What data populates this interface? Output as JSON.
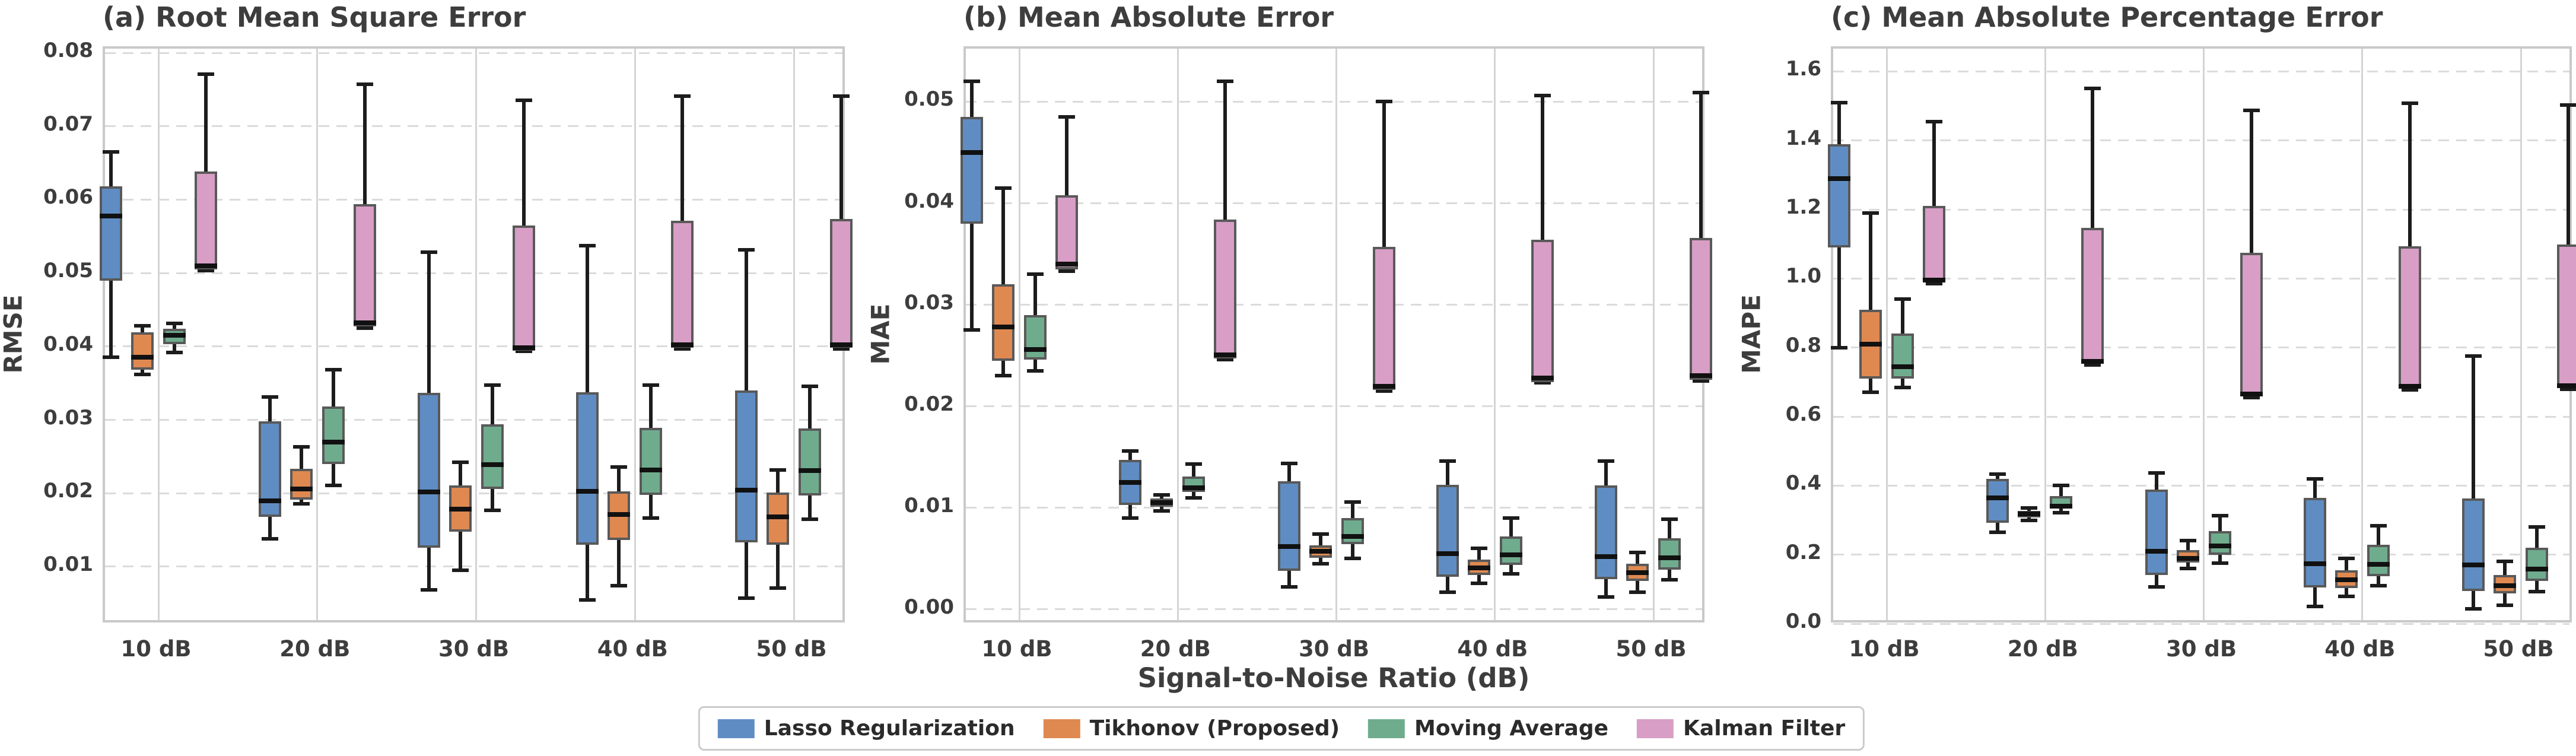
{
  "figure": {
    "xlabel": "Signal-to-Noise Ratio (dB)",
    "background": "#ffffff",
    "text_color": "#3d3d3d"
  },
  "legend": {
    "items": [
      {
        "key": "lasso",
        "label": "Lasso Regularization",
        "color": "#5f8dc3"
      },
      {
        "key": "tikhonov",
        "label": "Tikhonov (Proposed)",
        "color": "#df8951"
      },
      {
        "key": "moving",
        "label": "Moving Average",
        "color": "#6fac8e"
      },
      {
        "key": "kalman",
        "label": "Kalman Filter",
        "color": "#d89ec6"
      }
    ]
  },
  "style": {
    "box_edge_color": "#595959",
    "whisker_color": "#1c1c1c",
    "median_color": "#111111",
    "grid_color": "#dbdbdb",
    "vgrid_color": "#d4d4d4",
    "spine_color": "#c9c9c9"
  },
  "chart_data": [
    {
      "id": "a",
      "type": "box",
      "title": "(a) Root Mean Square Error",
      "ylabel": "RMSE",
      "categories": [
        "10 dB",
        "20 dB",
        "30 dB",
        "40 dB",
        "50 dB"
      ],
      "ylim": [
        0.00207,
        0.08057
      ],
      "yticks": [
        0.01,
        0.02,
        0.03,
        0.04,
        0.05,
        0.06,
        0.07,
        0.08
      ],
      "ytick_labels": [
        "0.01",
        "0.02",
        "0.03",
        "0.04",
        "0.05",
        "0.06",
        "0.07",
        "0.08"
      ],
      "grid": true,
      "legend_position": "figure-bottom",
      "series": [
        {
          "name": "Lasso Regularization",
          "key": "lasso",
          "boxes": [
            {
              "whislo": 0.0385,
              "q1": 0.049,
              "med": 0.0578,
              "q3": 0.0618,
              "whishi": 0.0665
            },
            {
              "whislo": 0.0138,
              "q1": 0.0168,
              "med": 0.019,
              "q3": 0.0298,
              "whishi": 0.0331
            },
            {
              "whislo": 0.0068,
              "q1": 0.0126,
              "med": 0.0202,
              "q3": 0.0337,
              "whishi": 0.0528
            },
            {
              "whislo": 0.0055,
              "q1": 0.013,
              "med": 0.0203,
              "q3": 0.0338,
              "whishi": 0.0537
            },
            {
              "whislo": 0.0057,
              "q1": 0.0133,
              "med": 0.0204,
              "q3": 0.034,
              "whishi": 0.0532
            }
          ]
        },
        {
          "name": "Tikhonov (Proposed)",
          "key": "tikhonov",
          "boxes": [
            {
              "whislo": 0.0362,
              "q1": 0.0368,
              "med": 0.0385,
              "q3": 0.0419,
              "whishi": 0.0428
            },
            {
              "whislo": 0.0186,
              "q1": 0.0191,
              "med": 0.0206,
              "q3": 0.0233,
              "whishi": 0.0263
            },
            {
              "whislo": 0.0095,
              "q1": 0.0148,
              "med": 0.0178,
              "q3": 0.0211,
              "whishi": 0.0242
            },
            {
              "whislo": 0.0074,
              "q1": 0.0136,
              "med": 0.0171,
              "q3": 0.0203,
              "whishi": 0.0236
            },
            {
              "whislo": 0.0071,
              "q1": 0.013,
              "med": 0.0168,
              "q3": 0.0201,
              "whishi": 0.0232
            }
          ]
        },
        {
          "name": "Moving Average",
          "key": "moving",
          "boxes": [
            {
              "whislo": 0.0392,
              "q1": 0.0403,
              "med": 0.0415,
              "q3": 0.0424,
              "whishi": 0.0431
            },
            {
              "whislo": 0.0211,
              "q1": 0.024,
              "med": 0.027,
              "q3": 0.0318,
              "whishi": 0.0368
            },
            {
              "whislo": 0.0177,
              "q1": 0.0206,
              "med": 0.0239,
              "q3": 0.0294,
              "whishi": 0.0347
            },
            {
              "whislo": 0.0166,
              "q1": 0.0198,
              "med": 0.0232,
              "q3": 0.0289,
              "whishi": 0.0347
            },
            {
              "whislo": 0.0165,
              "q1": 0.0197,
              "med": 0.0231,
              "q3": 0.0288,
              "whishi": 0.0346
            }
          ]
        },
        {
          "name": "Kalman Filter",
          "key": "kalman",
          "boxes": [
            {
              "whislo": 0.0503,
              "q1": 0.0505,
              "med": 0.051,
              "q3": 0.0638,
              "whishi": 0.0771
            },
            {
              "whislo": 0.0425,
              "q1": 0.0427,
              "med": 0.0432,
              "q3": 0.0594,
              "whishi": 0.0757
            },
            {
              "whislo": 0.0393,
              "q1": 0.0394,
              "med": 0.0398,
              "q3": 0.0565,
              "whishi": 0.0735
            },
            {
              "whislo": 0.0397,
              "q1": 0.0398,
              "med": 0.0402,
              "q3": 0.0571,
              "whishi": 0.0741
            },
            {
              "whislo": 0.0397,
              "q1": 0.0398,
              "med": 0.0402,
              "q3": 0.0574,
              "whishi": 0.0741
            }
          ]
        }
      ]
    },
    {
      "id": "b",
      "type": "box",
      "title": "(b) Mean Absolute Error",
      "ylabel": "MAE",
      "categories": [
        "10 dB",
        "20 dB",
        "30 dB",
        "40 dB",
        "50 dB"
      ],
      "ylim": [
        -0.00152,
        0.05523
      ],
      "yticks": [
        0.0,
        0.01,
        0.02,
        0.03,
        0.04,
        0.05
      ],
      "ytick_labels": [
        "0.00",
        "0.01",
        "0.02",
        "0.03",
        "0.04",
        "0.05"
      ],
      "grid": true,
      "legend_position": "figure-bottom",
      "series": [
        {
          "name": "Lasso Regularization",
          "key": "lasso",
          "boxes": [
            {
              "whislo": 0.0275,
              "q1": 0.038,
              "med": 0.045,
              "q3": 0.0485,
              "whishi": 0.052
            },
            {
              "whislo": 0.009,
              "q1": 0.0103,
              "med": 0.0125,
              "q3": 0.0147,
              "whishi": 0.0156
            },
            {
              "whislo": 0.0022,
              "q1": 0.0038,
              "med": 0.0062,
              "q3": 0.0126,
              "whishi": 0.0144
            },
            {
              "whislo": 0.0017,
              "q1": 0.0032,
              "med": 0.0055,
              "q3": 0.0123,
              "whishi": 0.0146
            },
            {
              "whislo": 0.0012,
              "q1": 0.003,
              "med": 0.0052,
              "q3": 0.0122,
              "whishi": 0.0146
            }
          ]
        },
        {
          "name": "Tikhonov (Proposed)",
          "key": "tikhonov",
          "boxes": [
            {
              "whislo": 0.023,
              "q1": 0.0245,
              "med": 0.0278,
              "q3": 0.032,
              "whishi": 0.0415
            },
            {
              "whislo": 0.0097,
              "q1": 0.0101,
              "med": 0.0105,
              "q3": 0.0109,
              "whishi": 0.0113
            },
            {
              "whislo": 0.0045,
              "q1": 0.0051,
              "med": 0.0057,
              "q3": 0.0063,
              "whishi": 0.0074
            },
            {
              "whislo": 0.0026,
              "q1": 0.0034,
              "med": 0.0041,
              "q3": 0.0049,
              "whishi": 0.006
            },
            {
              "whislo": 0.0017,
              "q1": 0.0028,
              "med": 0.0036,
              "q3": 0.0045,
              "whishi": 0.0056
            }
          ]
        },
        {
          "name": "Moving Average",
          "key": "moving",
          "boxes": [
            {
              "whislo": 0.0235,
              "q1": 0.0246,
              "med": 0.0256,
              "q3": 0.029,
              "whishi": 0.033
            },
            {
              "whislo": 0.011,
              "q1": 0.0116,
              "med": 0.012,
              "q3": 0.0131,
              "whishi": 0.0143
            },
            {
              "whislo": 0.005,
              "q1": 0.0064,
              "med": 0.0072,
              "q3": 0.009,
              "whishi": 0.0106
            },
            {
              "whislo": 0.0035,
              "q1": 0.0044,
              "med": 0.0054,
              "q3": 0.0072,
              "whishi": 0.009
            },
            {
              "whislo": 0.0029,
              "q1": 0.0039,
              "med": 0.0051,
              "q3": 0.007,
              "whishi": 0.0089
            }
          ]
        },
        {
          "name": "Kalman Filter",
          "key": "kalman",
          "boxes": [
            {
              "whislo": 0.0333,
              "q1": 0.0335,
              "med": 0.034,
              "q3": 0.0408,
              "whishi": 0.0485
            },
            {
              "whislo": 0.0246,
              "q1": 0.0247,
              "med": 0.0251,
              "q3": 0.0384,
              "whishi": 0.052
            },
            {
              "whislo": 0.0215,
              "q1": 0.0216,
              "med": 0.022,
              "q3": 0.0357,
              "whishi": 0.05
            },
            {
              "whislo": 0.0223,
              "q1": 0.0224,
              "med": 0.0228,
              "q3": 0.0364,
              "whishi": 0.0506
            },
            {
              "whislo": 0.0225,
              "q1": 0.0226,
              "med": 0.023,
              "q3": 0.0366,
              "whishi": 0.0509
            }
          ]
        }
      ]
    },
    {
      "id": "c",
      "type": "box",
      "title": "(c) Mean Absolute Percentage Error",
      "ylabel": "MAPE",
      "categories": [
        "10 dB",
        "20 dB",
        "30 dB",
        "40 dB",
        "50 dB"
      ],
      "ylim": [
        -0.0034,
        1.666
      ],
      "yticks": [
        0.0,
        0.2,
        0.4,
        0.6,
        0.8,
        1.0,
        1.2,
        1.4,
        1.6
      ],
      "ytick_labels": [
        "0.0",
        "0.2",
        "0.4",
        "0.6",
        "0.8",
        "1.0",
        "1.2",
        "1.4",
        "1.6"
      ],
      "grid": true,
      "legend_position": "figure-bottom",
      "series": [
        {
          "name": "Lasso Regularization",
          "key": "lasso",
          "boxes": [
            {
              "whislo": 0.8,
              "q1": 1.09,
              "med": 1.29,
              "q3": 1.39,
              "whishi": 1.51
            },
            {
              "whislo": 0.265,
              "q1": 0.293,
              "med": 0.365,
              "q3": 0.42,
              "whishi": 0.433
            },
            {
              "whislo": 0.107,
              "q1": 0.141,
              "med": 0.21,
              "q3": 0.388,
              "whishi": 0.437
            },
            {
              "whislo": 0.05,
              "q1": 0.105,
              "med": 0.173,
              "q3": 0.365,
              "whishi": 0.42
            },
            {
              "whislo": 0.043,
              "q1": 0.095,
              "med": 0.17,
              "q3": 0.363,
              "whishi": 0.775
            }
          ]
        },
        {
          "name": "Tikhonov (Proposed)",
          "key": "tikhonov",
          "boxes": [
            {
              "whislo": 0.67,
              "q1": 0.71,
              "med": 0.81,
              "q3": 0.91,
              "whishi": 1.19
            },
            {
              "whislo": 0.299,
              "q1": 0.307,
              "med": 0.318,
              "q3": 0.327,
              "whishi": 0.335
            },
            {
              "whislo": 0.16,
              "q1": 0.177,
              "med": 0.189,
              "q3": 0.214,
              "whishi": 0.241
            },
            {
              "whislo": 0.079,
              "q1": 0.104,
              "med": 0.127,
              "q3": 0.155,
              "whishi": 0.189
            },
            {
              "whislo": 0.054,
              "q1": 0.087,
              "med": 0.11,
              "q3": 0.141,
              "whishi": 0.18
            }
          ]
        },
        {
          "name": "Moving Average",
          "key": "moving",
          "boxes": [
            {
              "whislo": 0.685,
              "q1": 0.71,
              "med": 0.745,
              "q3": 0.84,
              "whishi": 0.94
            },
            {
              "whislo": 0.322,
              "q1": 0.335,
              "med": 0.341,
              "q3": 0.369,
              "whishi": 0.4
            },
            {
              "whislo": 0.175,
              "q1": 0.2,
              "med": 0.225,
              "q3": 0.268,
              "whishi": 0.313
            },
            {
              "whislo": 0.11,
              "q1": 0.138,
              "med": 0.172,
              "q3": 0.228,
              "whishi": 0.283
            },
            {
              "whislo": 0.093,
              "q1": 0.124,
              "med": 0.158,
              "q3": 0.22,
              "whishi": 0.281
            }
          ]
        },
        {
          "name": "Kalman Filter",
          "key": "kalman",
          "boxes": [
            {
              "whislo": 0.985,
              "q1": 0.988,
              "med": 0.995,
              "q3": 1.21,
              "whishi": 1.455
            },
            {
              "whislo": 0.75,
              "q1": 0.753,
              "med": 0.76,
              "q3": 1.147,
              "whishi": 1.55
            },
            {
              "whislo": 0.655,
              "q1": 0.658,
              "med": 0.665,
              "q3": 1.075,
              "whishi": 1.487
            },
            {
              "whislo": 0.678,
              "q1": 0.681,
              "med": 0.688,
              "q3": 1.093,
              "whishi": 1.508
            },
            {
              "whislo": 0.68,
              "q1": 0.683,
              "med": 0.69,
              "q3": 1.098,
              "whishi": 1.503
            }
          ]
        }
      ]
    }
  ]
}
